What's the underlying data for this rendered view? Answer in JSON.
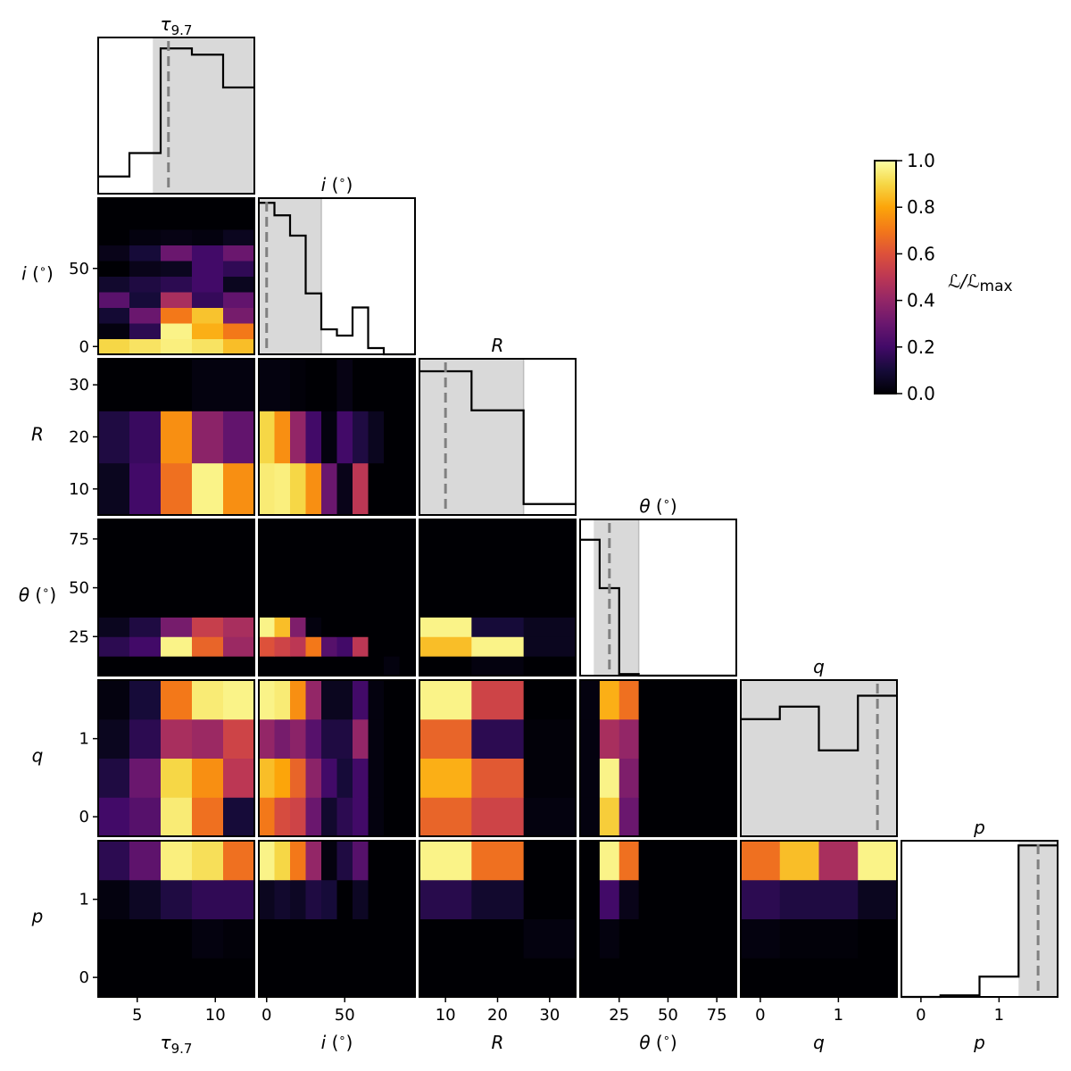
{
  "chart_data": {
    "type": "heatmap",
    "parameters": [
      {
        "key": "tau",
        "label": "τ9.7",
        "ticks": [
          5,
          10
        ],
        "range": [
          2.5,
          12.5
        ],
        "bins": 5,
        "edges": [
          2.5,
          4.5,
          6.5,
          8.5,
          10.5,
          12.5
        ]
      },
      {
        "key": "i",
        "label": "i (°)",
        "ticks": [
          0,
          50
        ],
        "range": [
          -5,
          95
        ],
        "bins": 10,
        "edges": [
          -5,
          5,
          15,
          25,
          35,
          45,
          55,
          65,
          75,
          85,
          95
        ]
      },
      {
        "key": "R",
        "label": "R",
        "ticks": [
          10,
          20,
          30
        ],
        "range": [
          5,
          35
        ],
        "bins": 3,
        "edges": [
          5,
          15,
          25,
          35
        ]
      },
      {
        "key": "theta",
        "label": "θ (°)",
        "ticks": [
          25,
          50,
          75
        ],
        "range": [
          5,
          85
        ],
        "bins": 8,
        "edges": [
          5,
          15,
          25,
          35,
          45,
          55,
          65,
          75,
          85
        ]
      },
      {
        "key": "q",
        "label": "q",
        "ticks": [
          0,
          1
        ],
        "range": [
          -0.25,
          1.75
        ],
        "bins": 4,
        "edges": [
          -0.25,
          0.25,
          0.75,
          1.25,
          1.75
        ]
      },
      {
        "key": "p",
        "label": "p",
        "ticks": [
          0,
          1
        ],
        "range": [
          -0.25,
          1.75
        ],
        "bins": 4,
        "edges": [
          -0.25,
          0.25,
          0.75,
          1.25,
          1.75
        ]
      }
    ],
    "diagonal": [
      {
        "param": "tau",
        "title": "τ9.7",
        "hist": [
          0.11,
          0.26,
          0.93,
          0.89,
          0.68
        ],
        "ci": [
          6.0,
          12.5
        ],
        "best": 7.0
      },
      {
        "param": "i",
        "title": "i (°)",
        "hist": [
          0.97,
          0.89,
          0.76,
          0.39,
          0.16,
          0.12,
          0.3,
          0.04,
          0.0,
          0.0
        ],
        "ci": [
          -5,
          35
        ],
        "best": 0
      },
      {
        "param": "R",
        "title": "R",
        "hist": [
          0.92,
          0.67,
          0.07
        ],
        "ci": [
          5,
          25
        ],
        "best": 10
      },
      {
        "param": "theta",
        "title": "θ (°)",
        "hist": [
          0.87,
          0.56,
          0.01,
          0.0,
          0.0,
          0.0,
          0.0,
          0.0
        ],
        "ci": [
          12,
          35
        ],
        "best": 20
      },
      {
        "param": "q",
        "title": "q",
        "hist": [
          0.75,
          0.83,
          0.55,
          0.9
        ],
        "ci": [
          -0.25,
          1.75
        ],
        "best": 1.5
      },
      {
        "param": "p",
        "title": "p",
        "hist": [
          0.0,
          0.01,
          0.13,
          0.97
        ],
        "ci": [
          1.25,
          1.75
        ],
        "best": 1.5
      }
    ],
    "panels": [
      {
        "x": "tau",
        "y": "i",
        "z": [
          [
            0.9,
            0.93,
            0.96,
            0.93,
            0.85
          ],
          [
            0.02,
            0.15,
            0.97,
            0.82,
            0.7
          ],
          [
            0.09,
            0.3,
            0.7,
            0.86,
            0.33
          ],
          [
            0.26,
            0.1,
            0.45,
            0.17,
            0.28
          ],
          [
            0.08,
            0.12,
            0.15,
            0.2,
            0.05
          ],
          [
            0.0,
            0.04,
            0.05,
            0.2,
            0.16
          ],
          [
            0.04,
            0.1,
            0.3,
            0.2,
            0.3
          ],
          [
            0.0,
            0.02,
            0.03,
            0.02,
            0.05
          ],
          [
            0.0,
            0.0,
            0.0,
            0.0,
            0.0
          ],
          [
            0.0,
            0.0,
            0.0,
            0.0,
            0.0
          ]
        ]
      },
      {
        "x": "tau",
        "y": "R",
        "z": [
          [
            0.05,
            0.2,
            0.68,
            0.97,
            0.75
          ],
          [
            0.12,
            0.18,
            0.75,
            0.38,
            0.28
          ],
          [
            0.0,
            0.0,
            0.0,
            0.02,
            0.02
          ]
        ]
      },
      {
        "x": "tau",
        "y": "theta",
        "z": [
          [
            0.0,
            0.0,
            0.0,
            0.0,
            0.0
          ],
          [
            0.15,
            0.2,
            0.97,
            0.65,
            0.42
          ],
          [
            0.05,
            0.12,
            0.33,
            0.53,
            0.45
          ],
          [
            0.0,
            0.0,
            0.0,
            0.0,
            0.0
          ],
          [
            0.0,
            0.0,
            0.0,
            0.0,
            0.0
          ],
          [
            0.0,
            0.0,
            0.0,
            0.0,
            0.0
          ],
          [
            0.0,
            0.0,
            0.0,
            0.0,
            0.0
          ],
          [
            0.0,
            0.0,
            0.0,
            0.0,
            0.0
          ]
        ]
      },
      {
        "x": "tau",
        "y": "q",
        "z": [
          [
            0.2,
            0.25,
            0.95,
            0.68,
            0.1
          ],
          [
            0.12,
            0.3,
            0.9,
            0.75,
            0.5
          ],
          [
            0.05,
            0.15,
            0.45,
            0.42,
            0.55
          ],
          [
            0.02,
            0.1,
            0.7,
            0.95,
            0.97
          ]
        ]
      },
      {
        "x": "tau",
        "y": "p",
        "z": [
          [
            0.0,
            0.0,
            0.0,
            0.0,
            0.0
          ],
          [
            0.0,
            0.0,
            0.0,
            0.02,
            0.01
          ],
          [
            0.02,
            0.06,
            0.12,
            0.16,
            0.16
          ],
          [
            0.15,
            0.27,
            0.96,
            0.92,
            0.68
          ]
        ]
      },
      {
        "x": "i",
        "y": "R",
        "z": [
          [
            0.95,
            0.96,
            0.9,
            0.75,
            0.3,
            0.04,
            0.5,
            0.0,
            0.0,
            0.0
          ],
          [
            0.9,
            0.75,
            0.4,
            0.2,
            0.02,
            0.2,
            0.12,
            0.05,
            0.0,
            0.0
          ],
          [
            0.02,
            0.02,
            0.01,
            0.0,
            0.0,
            0.03,
            0.0,
            0.0,
            0.0,
            0.0
          ]
        ]
      },
      {
        "x": "i",
        "y": "theta",
        "z": [
          [
            0.0,
            0.0,
            0.0,
            0.0,
            0.0,
            0.0,
            0.0,
            0.0,
            0.02,
            0.0
          ],
          [
            0.6,
            0.55,
            0.5,
            0.7,
            0.25,
            0.2,
            0.5,
            0.0,
            0.0,
            0.0
          ],
          [
            0.97,
            0.85,
            0.35,
            0.02,
            0.0,
            0.0,
            0.0,
            0.0,
            0.0,
            0.0
          ],
          [
            0.0,
            0.0,
            0.0,
            0.0,
            0.0,
            0.0,
            0.0,
            0.0,
            0.0,
            0.0
          ],
          [
            0.0,
            0.0,
            0.0,
            0.0,
            0.0,
            0.0,
            0.0,
            0.0,
            0.0,
            0.0
          ],
          [
            0.0,
            0.0,
            0.0,
            0.0,
            0.0,
            0.0,
            0.0,
            0.0,
            0.0,
            0.0
          ],
          [
            0.0,
            0.0,
            0.0,
            0.0,
            0.0,
            0.0,
            0.0,
            0.0,
            0.0,
            0.0
          ],
          [
            0.0,
            0.0,
            0.0,
            0.0,
            0.0,
            0.0,
            0.0,
            0.0,
            0.0,
            0.0
          ]
        ]
      },
      {
        "x": "i",
        "y": "q",
        "z": [
          [
            0.7,
            0.58,
            0.55,
            0.3,
            0.08,
            0.15,
            0.2,
            0.02,
            0.0,
            0.0
          ],
          [
            0.85,
            0.8,
            0.65,
            0.38,
            0.2,
            0.1,
            0.2,
            0.02,
            0.0,
            0.0
          ],
          [
            0.4,
            0.33,
            0.38,
            0.25,
            0.12,
            0.12,
            0.4,
            0.02,
            0.0,
            0.0
          ],
          [
            0.97,
            0.95,
            0.75,
            0.4,
            0.05,
            0.05,
            0.2,
            0.02,
            0.0,
            0.0
          ]
        ]
      },
      {
        "x": "i",
        "y": "p",
        "z": [
          [
            0.0,
            0.0,
            0.0,
            0.0,
            0.0,
            0.0,
            0.0,
            0.0,
            0.0,
            0.0
          ],
          [
            0.0,
            0.0,
            0.0,
            0.0,
            0.0,
            0.0,
            0.0,
            0.0,
            0.0,
            0.0
          ],
          [
            0.05,
            0.08,
            0.06,
            0.12,
            0.1,
            0.0,
            0.06,
            0.0,
            0.0,
            0.0
          ],
          [
            0.97,
            0.9,
            0.7,
            0.4,
            0.02,
            0.12,
            0.25,
            0.0,
            0.0,
            0.0
          ]
        ]
      },
      {
        "x": "R",
        "y": "theta",
        "z": [
          [
            0.0,
            0.02,
            0.0
          ],
          [
            0.85,
            0.97,
            0.05
          ],
          [
            0.97,
            0.1,
            0.05
          ],
          [
            0.0,
            0.0,
            0.0
          ],
          [
            0.0,
            0.0,
            0.0
          ],
          [
            0.0,
            0.0,
            0.0
          ],
          [
            0.0,
            0.0,
            0.0
          ],
          [
            0.0,
            0.0,
            0.0
          ]
        ]
      },
      {
        "x": "R",
        "y": "q",
        "z": [
          [
            0.65,
            0.55,
            0.02
          ],
          [
            0.82,
            0.62,
            0.01
          ],
          [
            0.65,
            0.15,
            0.01
          ],
          [
            0.97,
            0.55,
            0.0
          ]
        ]
      },
      {
        "x": "R",
        "y": "p",
        "z": [
          [
            0.0,
            0.0,
            0.0
          ],
          [
            0.0,
            0.0,
            0.02
          ],
          [
            0.14,
            0.08,
            0.0
          ],
          [
            0.97,
            0.68,
            0.0
          ]
        ]
      },
      {
        "x": "theta",
        "y": "q",
        "z": [
          [
            0.02,
            0.88,
            0.3,
            0.0,
            0.0,
            0.0,
            0.0,
            0.0
          ],
          [
            0.02,
            0.97,
            0.35,
            0.0,
            0.0,
            0.0,
            0.0,
            0.0
          ],
          [
            0.02,
            0.45,
            0.4,
            0.0,
            0.0,
            0.0,
            0.0,
            0.0
          ],
          [
            0.02,
            0.82,
            0.68,
            0.0,
            0.0,
            0.0,
            0.0,
            0.0
          ]
        ]
      },
      {
        "x": "theta",
        "y": "p",
        "z": [
          [
            0.0,
            0.0,
            0.0,
            0.0,
            0.0,
            0.0,
            0.0,
            0.0
          ],
          [
            0.0,
            0.02,
            0.0,
            0.0,
            0.0,
            0.0,
            0.0,
            0.0
          ],
          [
            0.0,
            0.2,
            0.04,
            0.0,
            0.0,
            0.0,
            0.0,
            0.0
          ],
          [
            0.0,
            0.97,
            0.68,
            0.0,
            0.0,
            0.0,
            0.0,
            0.0
          ]
        ]
      },
      {
        "x": "q",
        "y": "p",
        "z": [
          [
            0.0,
            0.0,
            0.0,
            0.0
          ],
          [
            0.02,
            0.01,
            0.01,
            0.0
          ],
          [
            0.15,
            0.12,
            0.12,
            0.05
          ],
          [
            0.68,
            0.85,
            0.45,
            0.97
          ]
        ]
      }
    ],
    "colorbar": {
      "label": "ℒ/ℒmax",
      "ticks": [
        "0.0",
        "0.2",
        "0.4",
        "0.6",
        "0.8",
        "1.0"
      ],
      "range": [
        0,
        1
      ],
      "colormap": "inferno"
    },
    "colors": {
      "ci_fill": "#d9d9d9",
      "best_line": "#808080",
      "hist_line": "#000000"
    }
  }
}
